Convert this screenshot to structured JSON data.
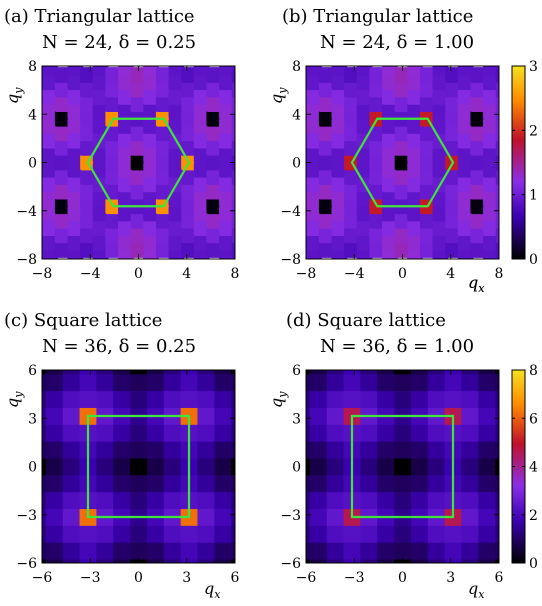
{
  "colors": {
    "bz_boundary": "#3ee53e",
    "peak": "#f5a100",
    "colormap": [
      "#000000",
      "#3a00b0",
      "#8a2ee6",
      "#c0122a",
      "#ff8a00",
      "#f5e020"
    ]
  },
  "chart_data": [
    {
      "type": "heatmap",
      "panel": "(a)",
      "title": "(a) Triangular lattice",
      "subtitle": "N = 24, δ = 0.25",
      "xlabel": "q_x",
      "ylabel": "q_y",
      "xlim": [
        -8,
        8
      ],
      "ylim": [
        -8,
        8
      ],
      "xticks": [
        -8,
        -4,
        0,
        4,
        8
      ],
      "yticks": [
        -8,
        -4,
        0,
        4,
        8
      ],
      "lattice": "triangular",
      "zero_point_value": 0,
      "corner_peak_value": 2.5,
      "bz_hexagon_vertices": [
        [
          4.19,
          0
        ],
        [
          2.09,
          3.63
        ],
        [
          -2.09,
          3.63
        ],
        [
          -4.19,
          0
        ],
        [
          -2.09,
          -3.63
        ],
        [
          2.09,
          -3.63
        ]
      ],
      "colorbar": false
    },
    {
      "type": "heatmap",
      "panel": "(b)",
      "title": "(b) Triangular lattice",
      "subtitle": "N = 24, δ = 1.00",
      "xlabel": "q_x",
      "ylabel": "q_y",
      "xlim": [
        -8,
        8
      ],
      "ylim": [
        -8,
        8
      ],
      "xticks": [
        -8,
        -4,
        0,
        4,
        8
      ],
      "yticks": [
        -8,
        -4,
        0,
        4,
        8
      ],
      "lattice": "triangular",
      "zero_point_value": 0,
      "corner_peak_value": 1.9,
      "bz_hexagon_vertices": [
        [
          4.19,
          0
        ],
        [
          2.09,
          3.63
        ],
        [
          -2.09,
          3.63
        ],
        [
          -4.19,
          0
        ],
        [
          -2.09,
          -3.63
        ],
        [
          2.09,
          -3.63
        ]
      ],
      "colorbar": true,
      "colorbar_range": [
        0,
        3
      ],
      "colorbar_ticks": [
        0,
        1,
        2,
        3
      ]
    },
    {
      "type": "heatmap",
      "panel": "(c)",
      "title": "(c) Square lattice",
      "subtitle": "N = 36, δ = 0.25",
      "xlabel": "q_x",
      "ylabel": "q_y",
      "xlim": [
        -6,
        6
      ],
      "ylim": [
        -6,
        6
      ],
      "xticks": [
        -6,
        -3,
        0,
        3,
        6
      ],
      "yticks": [
        -6,
        -3,
        0,
        3,
        6
      ],
      "lattice": "square",
      "zero_point_value": 0,
      "corner_peak_value": 6.2,
      "bz_square_vertices": [
        [
          3.14,
          3.14
        ],
        [
          -3.14,
          3.14
        ],
        [
          -3.14,
          -3.14
        ],
        [
          3.14,
          -3.14
        ]
      ],
      "colorbar": false
    },
    {
      "type": "heatmap",
      "panel": "(d)",
      "title": "(d) Square lattice",
      "subtitle": "N = 36, δ = 1.00",
      "xlabel": "q_x",
      "ylabel": "q_y",
      "xlim": [
        -6,
        6
      ],
      "ylim": [
        -6,
        6
      ],
      "xticks": [
        -6,
        -3,
        0,
        3,
        6
      ],
      "yticks": [
        -6,
        -3,
        0,
        3,
        6
      ],
      "lattice": "square",
      "zero_point_value": 0,
      "corner_peak_value": 4.6,
      "bz_square_vertices": [
        [
          3.14,
          3.14
        ],
        [
          -3.14,
          3.14
        ],
        [
          -3.14,
          -3.14
        ],
        [
          3.14,
          -3.14
        ]
      ],
      "colorbar": true,
      "colorbar_range": [
        0,
        8
      ],
      "colorbar_ticks": [
        0,
        2,
        4,
        6,
        8
      ]
    }
  ]
}
